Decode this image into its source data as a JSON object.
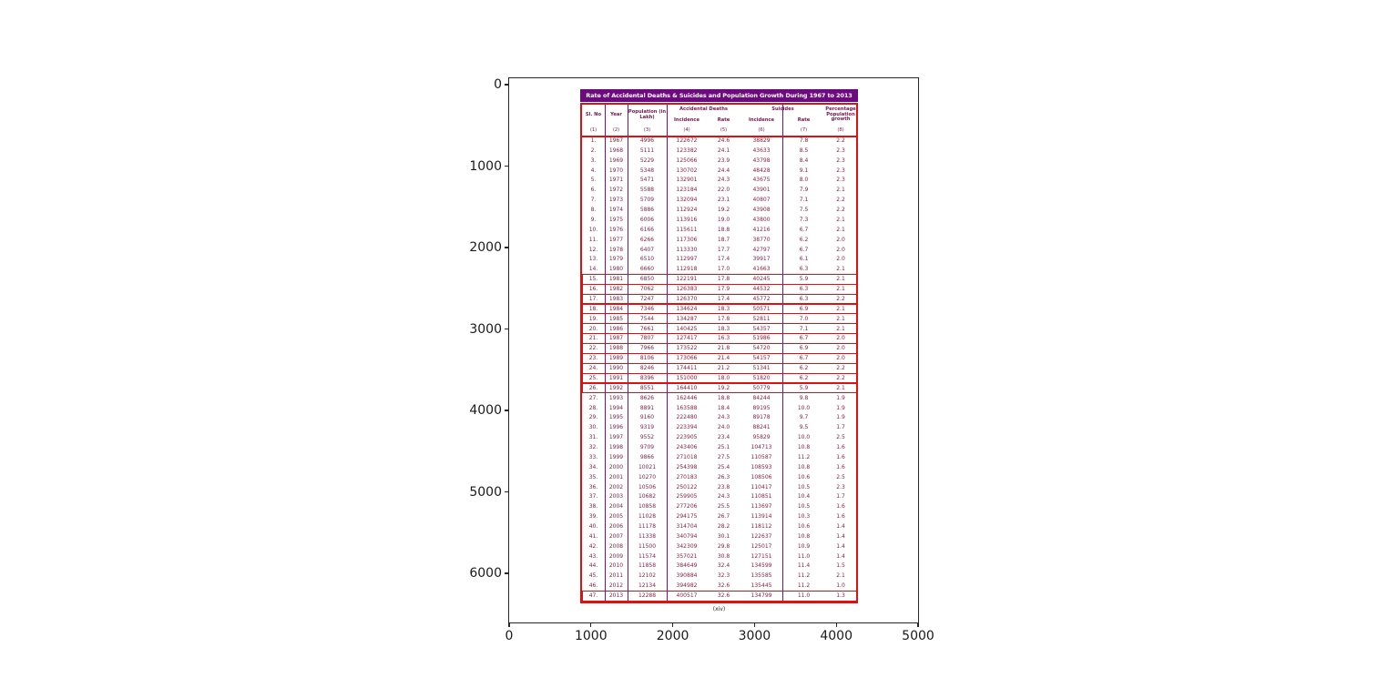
{
  "figure": {
    "x_ticks": [
      "0",
      "1000",
      "2000",
      "3000",
      "4000",
      "5000"
    ],
    "y_ticks": [
      "0",
      "1000",
      "2000",
      "3000",
      "4000",
      "5000",
      "6000"
    ]
  },
  "table": {
    "title": "Rate of Accidental Deaths & Suicides and Population Growth During 1967 to 2013",
    "header": {
      "sl_no": "Sl. No",
      "year": "Year",
      "population": "Population (in Lakh)",
      "accidental_group": "Accidental Deaths",
      "suicides_group": "Suicides",
      "incidence": "Incidence",
      "rate": "Rate",
      "pct_growth": "Percentage Population growth",
      "col_numbers": [
        "(1)",
        "(2)",
        "(3)",
        "(4)",
        "(5)",
        "(6)",
        "(7)",
        "(8)"
      ]
    },
    "caption": "(xiv)",
    "highlighted_row_numbers": [
      15,
      16,
      17,
      18,
      19,
      20,
      21,
      22,
      23,
      24,
      25,
      26,
      47
    ],
    "colors": {
      "title_bg": "#6e0a80",
      "title_text": "#ffffff",
      "table_text": "#8a2040",
      "column_line": "#7d0c86",
      "highlight_border": "#e01010"
    }
  },
  "chart_data": {
    "type": "table",
    "title": "Rate of Accidental Deaths & Suicides and Population Growth During 1967 to 2013",
    "columns": [
      "Sl. No",
      "Year",
      "Population (in Lakh)",
      "Accidental Deaths Incidence",
      "Accidental Deaths Rate",
      "Suicides Incidence",
      "Suicides Rate",
      "Percentage Population growth"
    ],
    "rows": [
      [
        "1.",
        "1967",
        "4996",
        "122672",
        "24.6",
        "38829",
        "7.8",
        "2.2"
      ],
      [
        "2.",
        "1968",
        "5111",
        "123382",
        "24.1",
        "43633",
        "8.5",
        "2.3"
      ],
      [
        "3.",
        "1969",
        "5229",
        "125066",
        "23.9",
        "43798",
        "8.4",
        "2.3"
      ],
      [
        "4.",
        "1970",
        "5348",
        "130702",
        "24.4",
        "48428",
        "9.1",
        "2.3"
      ],
      [
        "5.",
        "1971",
        "5471",
        "132901",
        "24.3",
        "43675",
        "8.0",
        "2.3"
      ],
      [
        "6.",
        "1972",
        "5588",
        "123184",
        "22.0",
        "43901",
        "7.9",
        "2.1"
      ],
      [
        "7.",
        "1973",
        "5709",
        "132094",
        "23.1",
        "40807",
        "7.1",
        "2.2"
      ],
      [
        "8.",
        "1974",
        "5886",
        "112924",
        "19.2",
        "43908",
        "7.5",
        "2.2"
      ],
      [
        "9.",
        "1975",
        "6006",
        "113916",
        "19.0",
        "43800",
        "7.3",
        "2.1"
      ],
      [
        "10.",
        "1976",
        "6166",
        "115611",
        "18.8",
        "41216",
        "6.7",
        "2.1"
      ],
      [
        "11.",
        "1977",
        "6266",
        "117306",
        "18.7",
        "38770",
        "6.2",
        "2.0"
      ],
      [
        "12.",
        "1978",
        "6407",
        "113330",
        "17.7",
        "42797",
        "6.7",
        "2.0"
      ],
      [
        "13.",
        "1979",
        "6510",
        "112997",
        "17.4",
        "39917",
        "6.1",
        "2.0"
      ],
      [
        "14.",
        "1980",
        "6660",
        "112918",
        "17.0",
        "41663",
        "6.3",
        "2.1"
      ],
      [
        "15.",
        "1981",
        "6850",
        "122191",
        "17.8",
        "40245",
        "5.9",
        "2.1"
      ],
      [
        "16.",
        "1982",
        "7062",
        "126383",
        "17.9",
        "44532",
        "6.3",
        "2.1"
      ],
      [
        "17.",
        "1983",
        "7247",
        "126370",
        "17.4",
        "45772",
        "6.3",
        "2.2"
      ],
      [
        "18.",
        "1984",
        "7346",
        "134624",
        "18.3",
        "50571",
        "6.9",
        "2.1"
      ],
      [
        "19.",
        "1985",
        "7544",
        "134287",
        "17.8",
        "52811",
        "7.0",
        "2.1"
      ],
      [
        "20.",
        "1986",
        "7661",
        "140425",
        "18.3",
        "54357",
        "7.1",
        "2.1"
      ],
      [
        "21.",
        "1987",
        "7807",
        "127417",
        "16.3",
        "51986",
        "6.7",
        "2.0"
      ],
      [
        "22.",
        "1988",
        "7966",
        "173522",
        "21.8",
        "54720",
        "6.9",
        "2.0"
      ],
      [
        "23.",
        "1989",
        "8106",
        "173066",
        "21.4",
        "54157",
        "6.7",
        "2.0"
      ],
      [
        "24.",
        "1990",
        "8246",
        "174411",
        "21.2",
        "51341",
        "6.2",
        "2.2"
      ],
      [
        "25.",
        "1991",
        "8396",
        "151000",
        "18.0",
        "51820",
        "6.2",
        "2.2"
      ],
      [
        "26.",
        "1992",
        "8551",
        "164410",
        "19.2",
        "50779",
        "5.9",
        "2.1"
      ],
      [
        "27.",
        "1993",
        "8626",
        "162446",
        "18.8",
        "84244",
        "9.8",
        "1.9"
      ],
      [
        "28.",
        "1994",
        "8891",
        "163588",
        "18.4",
        "89195",
        "10.0",
        "1.9"
      ],
      [
        "29.",
        "1995",
        "9160",
        "222480",
        "24.3",
        "89178",
        "9.7",
        "1.9"
      ],
      [
        "30.",
        "1996",
        "9319",
        "223394",
        "24.0",
        "88241",
        "9.5",
        "1.7"
      ],
      [
        "31.",
        "1997",
        "9552",
        "223905",
        "23.4",
        "95829",
        "10.0",
        "2.5"
      ],
      [
        "32.",
        "1998",
        "9709",
        "243406",
        "25.1",
        "104713",
        "10.8",
        "1.6"
      ],
      [
        "33.",
        "1999",
        "9866",
        "271018",
        "27.5",
        "110587",
        "11.2",
        "1.6"
      ],
      [
        "34.",
        "2000",
        "10021",
        "254398",
        "25.4",
        "108593",
        "10.8",
        "1.6"
      ],
      [
        "35.",
        "2001",
        "10270",
        "270183",
        "26.3",
        "108506",
        "10.6",
        "2.5"
      ],
      [
        "36.",
        "2002",
        "10506",
        "250122",
        "23.8",
        "110417",
        "10.5",
        "2.3"
      ],
      [
        "37.",
        "2003",
        "10682",
        "259905",
        "24.3",
        "110851",
        "10.4",
        "1.7"
      ],
      [
        "38.",
        "2004",
        "10858",
        "277206",
        "25.5",
        "113697",
        "10.5",
        "1.6"
      ],
      [
        "39.",
        "2005",
        "11028",
        "294175",
        "26.7",
        "113914",
        "10.3",
        "1.6"
      ],
      [
        "40.",
        "2006",
        "11178",
        "314704",
        "28.2",
        "118112",
        "10.6",
        "1.4"
      ],
      [
        "41.",
        "2007",
        "11338",
        "340794",
        "30.1",
        "122637",
        "10.8",
        "1.4"
      ],
      [
        "42.",
        "2008",
        "11500",
        "342309",
        "29.8",
        "125017",
        "10.9",
        "1.4"
      ],
      [
        "43.",
        "2009",
        "11574",
        "357021",
        "30.8",
        "127151",
        "11.0",
        "1.4"
      ],
      [
        "44.",
        "2010",
        "11858",
        "384649",
        "32.4",
        "134599",
        "11.4",
        "1.5"
      ],
      [
        "45.",
        "2011",
        "12102",
        "390884",
        "32.3",
        "135585",
        "11.2",
        "2.1"
      ],
      [
        "46.",
        "2012",
        "12134",
        "394982",
        "32.6",
        "135445",
        "11.2",
        "1.0"
      ],
      [
        "47.",
        "2013",
        "12288",
        "400517",
        "32.6",
        "134799",
        "11.0",
        "1.3"
      ]
    ]
  }
}
